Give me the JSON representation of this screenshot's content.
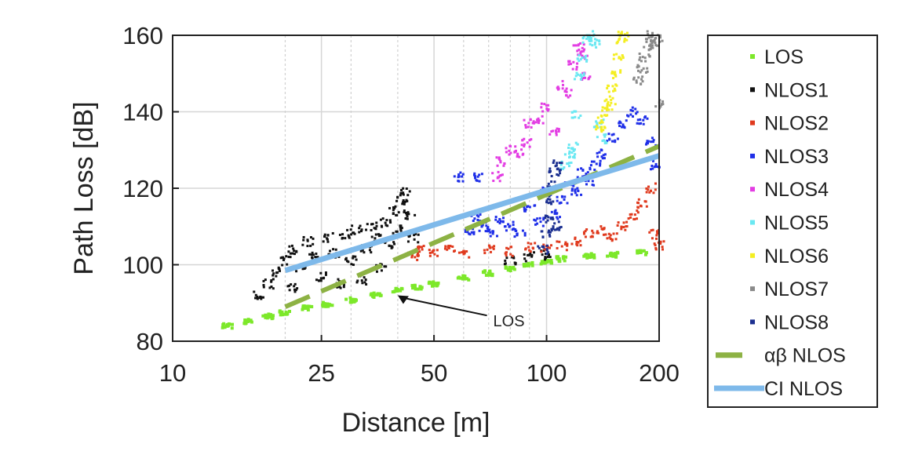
{
  "chart_data": {
    "type": "scatter",
    "xlabel": "Distance [m]",
    "ylabel": "Path Loss [dB]",
    "xscale": "log",
    "xlim": [
      10,
      200
    ],
    "ylim": [
      80,
      160
    ],
    "xticks": [
      10,
      25,
      50,
      100,
      200
    ],
    "xtick_labels": [
      "10",
      "25",
      "50",
      "100",
      "200"
    ],
    "yticks": [
      80,
      100,
      120,
      140,
      160
    ],
    "ytick_labels": [
      "80",
      "100",
      "120",
      "140",
      "160"
    ],
    "grid": true,
    "legend_placement": "outside-right",
    "series": [
      {
        "name": "LOS",
        "color": "#7de82a",
        "kind": "points",
        "points": [
          [
            14,
            84
          ],
          [
            16,
            85.2
          ],
          [
            18,
            86.5
          ],
          [
            20,
            87.5
          ],
          [
            23,
            88.6
          ],
          [
            26,
            89.6
          ],
          [
            30,
            90.8
          ],
          [
            35,
            92
          ],
          [
            40,
            93.2
          ],
          [
            45,
            94.2
          ],
          [
            50,
            95
          ],
          [
            60,
            96.5
          ],
          [
            70,
            97.8
          ],
          [
            80,
            99
          ],
          [
            90,
            100
          ],
          [
            100,
            100.8
          ],
          [
            110,
            101.5
          ],
          [
            130,
            102.3
          ],
          [
            150,
            102.6
          ],
          [
            180,
            103.2
          ]
        ]
      },
      {
        "name": "NLOS1",
        "color": "#111111",
        "kind": "points",
        "points": [
          [
            17,
            92
          ],
          [
            18,
            95
          ],
          [
            19,
            98
          ],
          [
            20,
            101
          ],
          [
            21,
            104
          ],
          [
            21,
            94
          ],
          [
            22,
            99
          ],
          [
            23,
            106
          ],
          [
            24,
            102
          ],
          [
            25,
            97
          ],
          [
            26,
            107
          ],
          [
            27,
            103
          ],
          [
            28,
            95
          ],
          [
            29,
            108
          ],
          [
            30,
            101
          ],
          [
            31,
            109
          ],
          [
            32,
            96
          ],
          [
            33,
            104
          ],
          [
            34,
            110
          ],
          [
            35,
            107
          ],
          [
            36,
            99
          ],
          [
            37,
            111
          ],
          [
            38,
            105
          ],
          [
            39,
            114
          ],
          [
            40,
            109
          ],
          [
            41,
            117
          ],
          [
            42,
            119
          ],
          [
            43,
            113
          ],
          [
            44,
            107
          ],
          [
            80,
            101
          ],
          [
            90,
            102
          ],
          [
            100,
            102.5
          ]
        ]
      },
      {
        "name": "NLOS2",
        "color": "#e03a1e",
        "kind": "points",
        "points": [
          [
            44,
            102
          ],
          [
            46,
            104
          ],
          [
            50,
            103.5
          ],
          [
            55,
            104
          ],
          [
            60,
            103
          ],
          [
            70,
            104
          ],
          [
            80,
            103.5
          ],
          [
            90,
            104.5
          ],
          [
            100,
            104
          ],
          [
            110,
            105
          ],
          [
            120,
            106
          ],
          [
            130,
            108
          ],
          [
            140,
            109
          ],
          [
            150,
            107
          ],
          [
            160,
            110
          ],
          [
            170,
            113
          ],
          [
            180,
            116
          ],
          [
            190,
            120
          ],
          [
            195,
            108
          ],
          [
            200,
            105
          ]
        ]
      },
      {
        "name": "NLOS3",
        "color": "#1f2fe8",
        "kind": "points",
        "points": [
          [
            62,
            109
          ],
          [
            65,
            112
          ],
          [
            68,
            110
          ],
          [
            72,
            108
          ],
          [
            75,
            112
          ],
          [
            80,
            110
          ],
          [
            85,
            108
          ],
          [
            90,
            115
          ],
          [
            95,
            111
          ],
          [
            100,
            119
          ],
          [
            105,
            113
          ],
          [
            110,
            117
          ],
          [
            115,
            121
          ],
          [
            120,
            119
          ],
          [
            125,
            124
          ],
          [
            130,
            122
          ],
          [
            135,
            126
          ],
          [
            140,
            129
          ],
          [
            150,
            133
          ],
          [
            160,
            137
          ],
          [
            170,
            140
          ],
          [
            180,
            138
          ],
          [
            190,
            132
          ],
          [
            195,
            126
          ],
          [
            66,
            123
          ],
          [
            58,
            123
          ]
        ]
      },
      {
        "name": "NLOS4",
        "color": "#e33de3",
        "kind": "points",
        "points": [
          [
            74,
            123
          ],
          [
            76,
            127
          ],
          [
            80,
            130
          ],
          [
            84,
            129
          ],
          [
            88,
            132
          ],
          [
            90,
            137
          ],
          [
            95,
            138
          ],
          [
            100,
            141
          ],
          [
            105,
            135
          ],
          [
            110,
            147
          ],
          [
            113,
            145
          ],
          [
            118,
            152
          ],
          [
            122,
            157
          ],
          [
            125,
            155
          ],
          [
            128,
            149
          ]
        ]
      },
      {
        "name": "NLOS5",
        "color": "#6ae8f2",
        "kind": "points",
        "points": [
          [
            113,
            126
          ],
          [
            116,
            129
          ],
          [
            118,
            131
          ],
          [
            120,
            139
          ],
          [
            122,
            149
          ],
          [
            125,
            154
          ],
          [
            128,
            159
          ],
          [
            132,
            160
          ],
          [
            135,
            158
          ],
          [
            138,
            137
          ],
          [
            140,
            133
          ]
        ]
      },
      {
        "name": "NLOS6",
        "color": "#f4ee22",
        "kind": "points",
        "points": [
          [
            140,
            136
          ],
          [
            142,
            138
          ],
          [
            145,
            141
          ],
          [
            148,
            143
          ],
          [
            150,
            146
          ],
          [
            153,
            150
          ],
          [
            156,
            154
          ],
          [
            159,
            159
          ],
          [
            161,
            160
          ]
        ]
      },
      {
        "name": "NLOS7",
        "color": "#8a8a8a",
        "kind": "points",
        "points": [
          [
            175,
            148
          ],
          [
            180,
            151
          ],
          [
            183,
            154
          ],
          [
            186,
            158
          ],
          [
            190,
            160
          ],
          [
            194,
            157
          ],
          [
            198,
            159
          ],
          [
            200,
            142
          ]
        ]
      },
      {
        "name": "NLOS8",
        "color": "#1c3090",
        "kind": "points",
        "points": [
          [
            98,
            104
          ],
          [
            100,
            108
          ],
          [
            102,
            112
          ],
          [
            103,
            117
          ],
          [
            104,
            121
          ],
          [
            105,
            124
          ],
          [
            106,
            110
          ],
          [
            107,
            126
          ]
        ]
      },
      {
        "name": "αβ NLOS",
        "color": "#8db244",
        "kind": "dashed-line",
        "points": [
          [
            20,
            89
          ],
          [
            200,
            131
          ]
        ]
      },
      {
        "name": "CI NLOS",
        "color": "#7eb9ea",
        "kind": "line",
        "points": [
          [
            20,
            98.5
          ],
          [
            200,
            128.5
          ]
        ]
      }
    ],
    "annotations": [
      {
        "text": "LOS",
        "x": 72,
        "y": 85.5,
        "arrow_to": [
          40,
          92
        ]
      }
    ]
  }
}
